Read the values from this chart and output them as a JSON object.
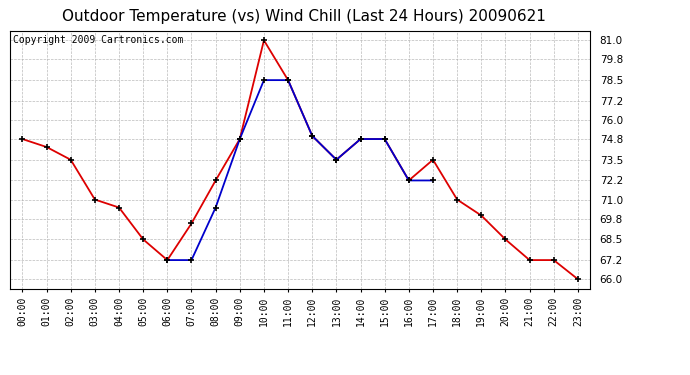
{
  "title": "Outdoor Temperature (vs) Wind Chill (Last 24 Hours) 20090621",
  "copyright": "Copyright 2009 Cartronics.com",
  "x_labels": [
    "00:00",
    "01:00",
    "02:00",
    "03:00",
    "04:00",
    "05:00",
    "06:00",
    "07:00",
    "08:00",
    "09:00",
    "10:00",
    "11:00",
    "12:00",
    "13:00",
    "14:00",
    "15:00",
    "16:00",
    "17:00",
    "18:00",
    "19:00",
    "20:00",
    "21:00",
    "22:00",
    "23:00"
  ],
  "temp_x": [
    0,
    1,
    2,
    3,
    4,
    5,
    6,
    7,
    8,
    9,
    10,
    11,
    12,
    13,
    14,
    15,
    16,
    17,
    18,
    19,
    20,
    21,
    22,
    23
  ],
  "temp_y": [
    74.8,
    74.3,
    73.5,
    71.0,
    70.5,
    68.5,
    67.2,
    69.5,
    72.2,
    74.8,
    81.0,
    78.5,
    75.0,
    73.5,
    74.8,
    74.8,
    72.2,
    73.5,
    71.0,
    70.0,
    68.5,
    67.2,
    67.2,
    66.0
  ],
  "chill_x": [
    6,
    7,
    8,
    9,
    10,
    11,
    12,
    13,
    14,
    15,
    16,
    17
  ],
  "chill_y": [
    67.2,
    67.2,
    70.5,
    74.8,
    78.5,
    78.5,
    75.0,
    73.5,
    74.8,
    74.8,
    72.2,
    72.2
  ],
  "ylim_min": 65.4,
  "ylim_max": 81.6,
  "yticks": [
    66.0,
    67.2,
    68.5,
    69.8,
    71.0,
    72.2,
    73.5,
    74.8,
    76.0,
    77.2,
    78.5,
    79.8,
    81.0
  ],
  "temp_color": "#dd0000",
  "chill_color": "#0000cc",
  "bg_color": "#ffffff",
  "plot_bg_color": "#ffffff",
  "grid_color": "#aaaaaa",
  "title_fontsize": 11,
  "copyright_fontsize": 7.0,
  "marker_color": "#000000",
  "marker_size": 4,
  "marker_lw": 1.2,
  "line_width": 1.3
}
